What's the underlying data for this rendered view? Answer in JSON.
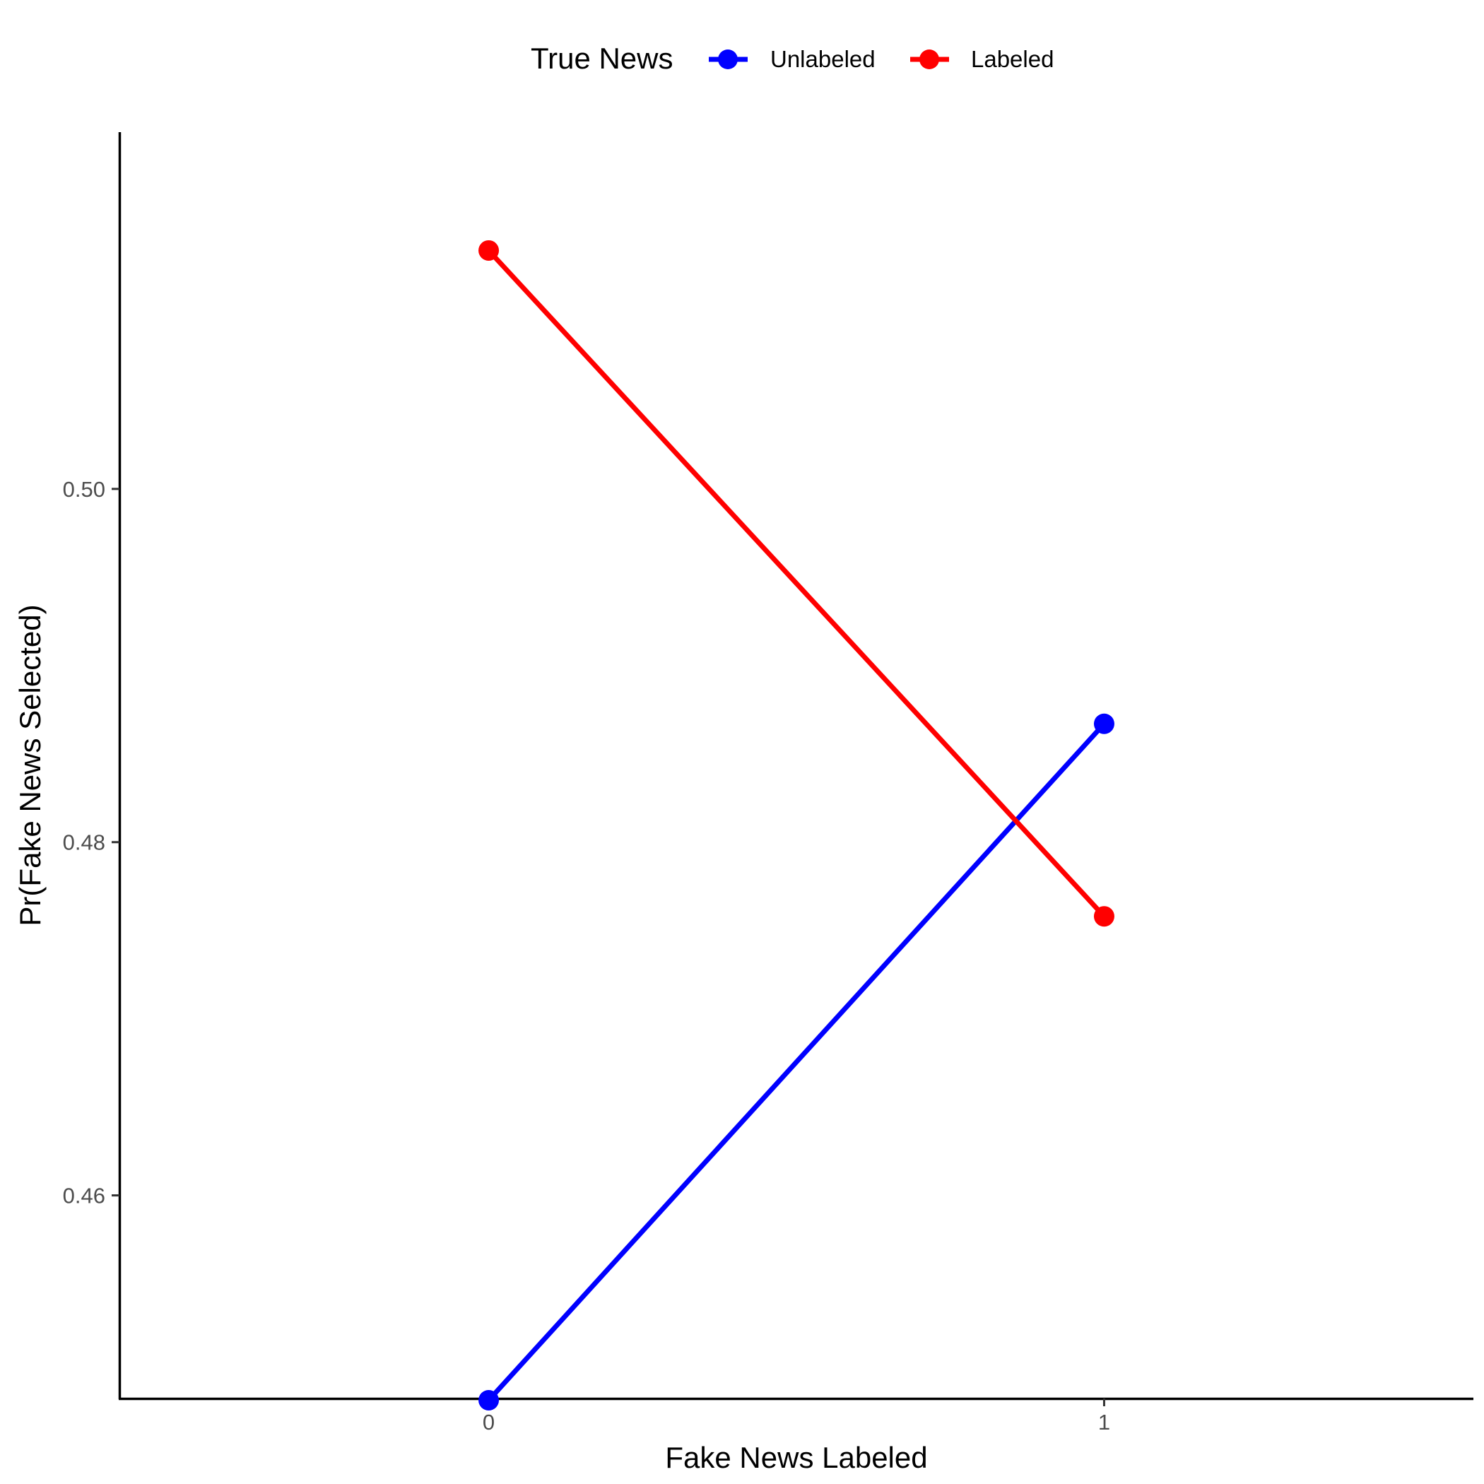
{
  "chart_data": {
    "type": "line",
    "title": "",
    "xlabel": "Fake News Labeled",
    "ylabel": "Pr(Fake News Selected)",
    "x": [
      0,
      1
    ],
    "x_tick_labels": [
      "0",
      "1"
    ],
    "xlim": [
      -0.6,
      1.6
    ],
    "y_tick_values": [
      0.46,
      0.48,
      0.5
    ],
    "y_tick_labels": [
      "0.46",
      "0.48",
      "0.50"
    ],
    "ylim": [
      0.4485,
      0.5202
    ],
    "grid": false,
    "legend": {
      "title": "True News",
      "position": "top",
      "entries": [
        "Unlabeled",
        "Labeled"
      ]
    },
    "series": [
      {
        "name": "Unlabeled",
        "color": "#0000ff",
        "values": [
          0.4484,
          0.4867
        ]
      },
      {
        "name": "Labeled",
        "color": "#ff0000",
        "values": [
          0.5135,
          0.4758
        ]
      }
    ]
  }
}
